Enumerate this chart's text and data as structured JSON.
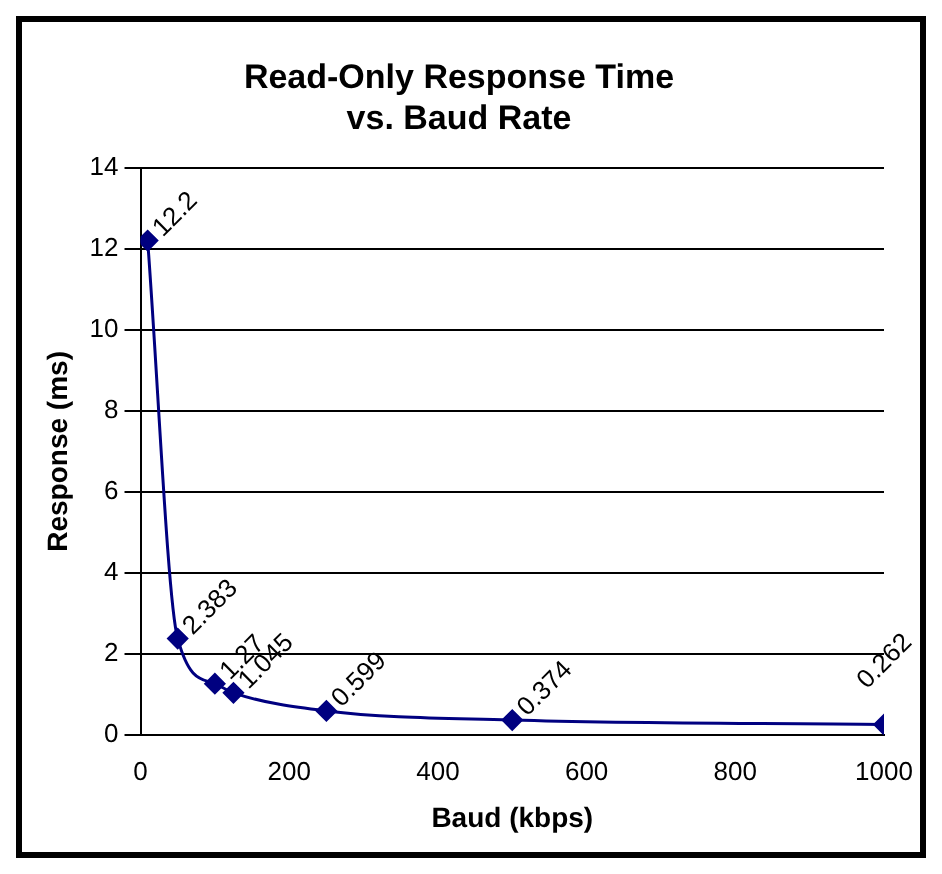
{
  "chart_data": {
    "type": "line",
    "title": "Read-Only Response Time vs. Baud Rate",
    "xlabel": "Baud (kbps)",
    "ylabel": "Response (ms)",
    "x": [
      9.6,
      50,
      100,
      125,
      250,
      500,
      1000
    ],
    "series": [
      {
        "color": "#000080",
        "values": [
          12.2,
          2.383,
          1.27,
          1.045,
          0.599,
          0.374,
          0.262
        ]
      }
    ],
    "xlim": [
      0,
      1000
    ],
    "xticks": [
      0,
      200,
      400,
      600,
      800,
      1000
    ],
    "ylim": [
      0,
      14
    ],
    "yticks": [
      0,
      2,
      4,
      6,
      8,
      10,
      12,
      14
    ],
    "grid": "y",
    "marker": "diamond",
    "line_style": "solid",
    "legend": false,
    "data_labels": true
  }
}
